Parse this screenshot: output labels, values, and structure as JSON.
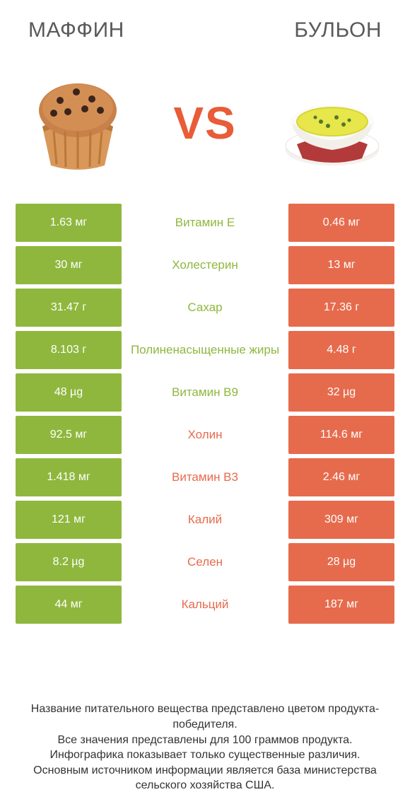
{
  "colors": {
    "green": "#8fb73e",
    "orange": "#e66b4d",
    "orange_text": "#e85c38",
    "mid_green_text": "#8fb73e",
    "mid_orange_text": "#e66b4d",
    "title_text": "#5a5a5a"
  },
  "header": {
    "left_title": "МАФФИН",
    "right_title": "БУЛЬОН",
    "vs": "VS"
  },
  "rows": [
    {
      "nutrient": "Витамин E",
      "left": "1.63 мг",
      "right": "0.46 мг",
      "winner": "left"
    },
    {
      "nutrient": "Холестерин",
      "left": "30 мг",
      "right": "13 мг",
      "winner": "left"
    },
    {
      "nutrient": "Сахар",
      "left": "31.47 г",
      "right": "17.36 г",
      "winner": "left"
    },
    {
      "nutrient": "Полиненасыщенные жиры",
      "left": "8.103 г",
      "right": "4.48 г",
      "winner": "left"
    },
    {
      "nutrient": "Витамин B9",
      "left": "48 µg",
      "right": "32 µg",
      "winner": "left"
    },
    {
      "nutrient": "Холин",
      "left": "92.5 мг",
      "right": "114.6 мг",
      "winner": "right"
    },
    {
      "nutrient": "Витамин B3",
      "left": "1.418 мг",
      "right": "2.46 мг",
      "winner": "right"
    },
    {
      "nutrient": "Калий",
      "left": "121 мг",
      "right": "309 мг",
      "winner": "right"
    },
    {
      "nutrient": "Селен",
      "left": "8.2 µg",
      "right": "28 µg",
      "winner": "right"
    },
    {
      "nutrient": "Кальций",
      "left": "44 мг",
      "right": "187 мг",
      "winner": "right"
    }
  ],
  "footnote": "Название питательного вещества представлено цветом продукта-победителя.\nВсе значения представлены для 100 граммов продукта.\nИнфографика показывает только существенные различия.\nОсновным источником информации является база министерства сельского хозяйства США."
}
